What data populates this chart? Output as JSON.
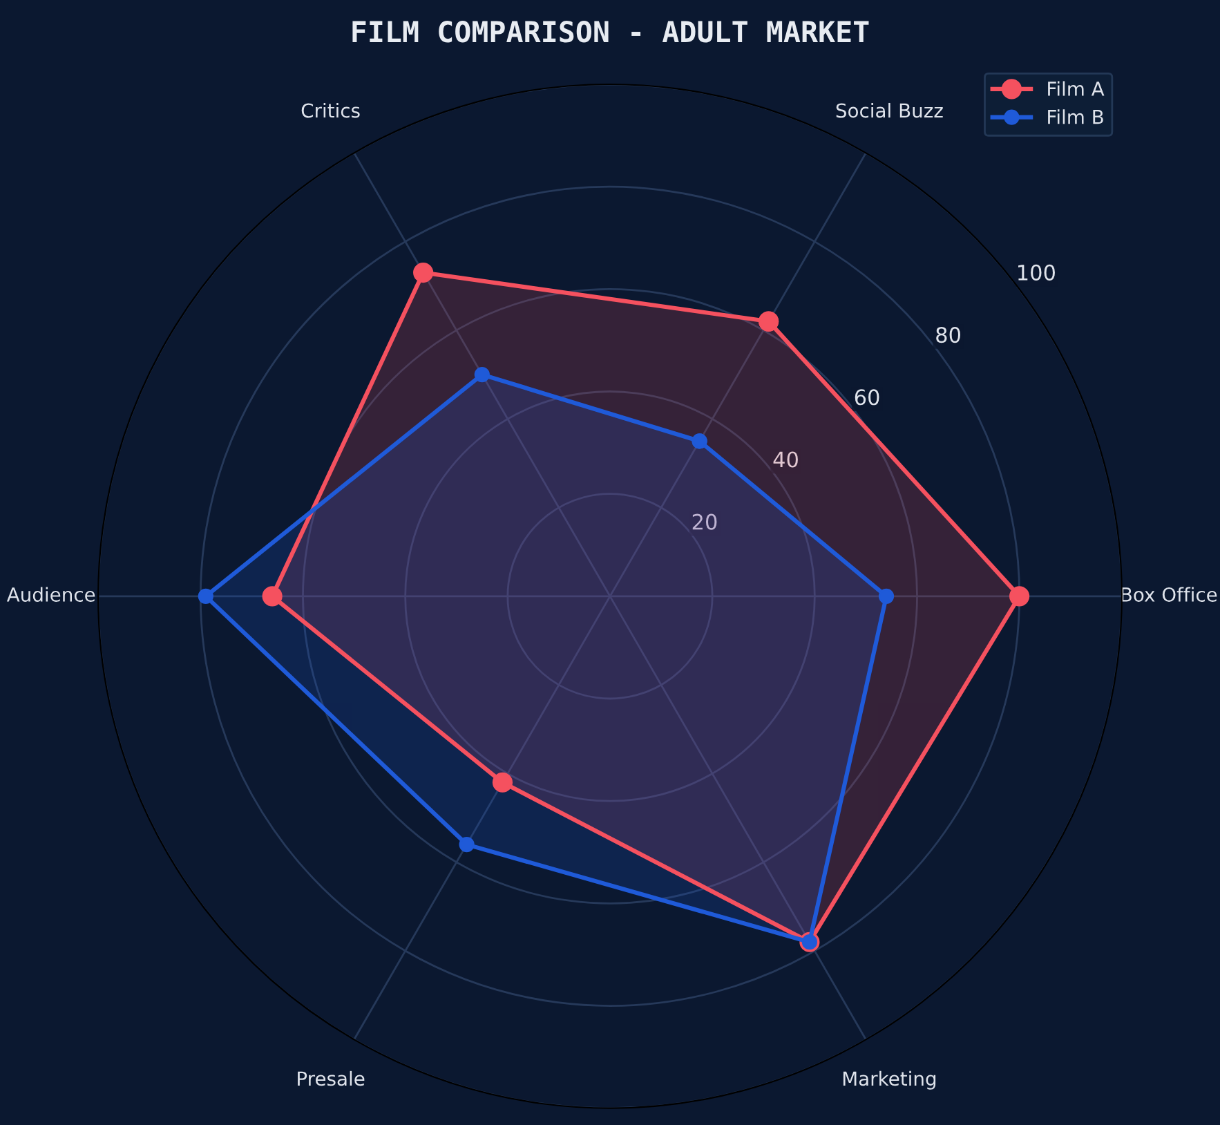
{
  "chart_data": {
    "type": "radar",
    "title": "FILM COMPARISON - ADULT MARKET",
    "categories": [
      "Social Buzz",
      "Box Office",
      "Marketing",
      "Presale",
      "Audience",
      "Critics"
    ],
    "series": [
      {
        "name": "Film A",
        "color": "#f5515f",
        "values": [
          62,
          80,
          78,
          42,
          66,
          73
        ]
      },
      {
        "name": "Film B",
        "color": "#1f5ad8",
        "values": [
          35,
          54,
          78,
          56,
          79,
          50
        ]
      }
    ],
    "ylim": [
      0,
      100
    ],
    "yticks": [
      20,
      40,
      60,
      80,
      100
    ],
    "grid": true,
    "legend": "top right",
    "marker": "circle",
    "line_style": "solid"
  }
}
